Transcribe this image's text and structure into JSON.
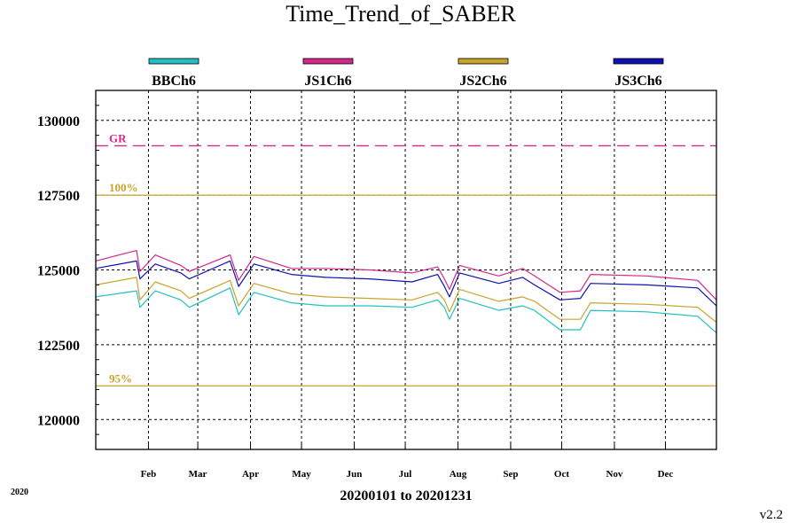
{
  "chart_data": {
    "type": "line",
    "title": "Time_Trend_of_SABER",
    "xlabel": "20200101 to 20201231",
    "ylabel": "",
    "year_label": "2020",
    "version": "v2.2",
    "ylim": [
      119000,
      131000
    ],
    "xlim": [
      "2020-01-01",
      "2020-12-31"
    ],
    "yticks": [
      120000,
      122500,
      125000,
      127500,
      130000
    ],
    "xticks": [
      {
        "label": "Feb",
        "date": "2020-02-01"
      },
      {
        "label": "Mar",
        "date": "2020-03-01"
      },
      {
        "label": "Apr",
        "date": "2020-04-01"
      },
      {
        "label": "May",
        "date": "2020-05-01"
      },
      {
        "label": "Jun",
        "date": "2020-06-01"
      },
      {
        "label": "Jul",
        "date": "2020-07-01"
      },
      {
        "label": "Aug",
        "date": "2020-08-01"
      },
      {
        "label": "Sep",
        "date": "2020-09-01"
      },
      {
        "label": "Oct",
        "date": "2020-10-01"
      },
      {
        "label": "Nov",
        "date": "2020-11-01"
      },
      {
        "label": "Dec",
        "date": "2020-12-01"
      }
    ],
    "grid": true,
    "legend": "top",
    "reference_lines": [
      {
        "label": "GR",
        "value": 129150,
        "color": "#d4288a",
        "style": "dashed"
      },
      {
        "label": "100%",
        "value": 127500,
        "color": "#c8a42a",
        "style": "solid"
      },
      {
        "label": "95%",
        "value": 121125,
        "color": "#c8a42a",
        "style": "solid"
      }
    ],
    "x": [
      "2020-01-01",
      "2020-01-25",
      "2020-01-27",
      "2020-02-05",
      "2020-02-20",
      "2020-02-25",
      "2020-03-20",
      "2020-03-25",
      "2020-04-03",
      "2020-04-25",
      "2020-05-15",
      "2020-06-10",
      "2020-07-05",
      "2020-07-20",
      "2020-07-24",
      "2020-07-27",
      "2020-08-02",
      "2020-08-25",
      "2020-09-08",
      "2020-09-15",
      "2020-09-30",
      "2020-10-12",
      "2020-10-18",
      "2020-11-20",
      "2020-12-20",
      "2020-12-31"
    ],
    "series": [
      {
        "name": "BBCh6",
        "color": "#22c0c0",
        "values": [
          124100,
          124300,
          123750,
          124300,
          124000,
          123750,
          124400,
          123500,
          124250,
          123900,
          123800,
          123800,
          123750,
          124000,
          123750,
          123350,
          124050,
          123650,
          123800,
          123650,
          123000,
          123000,
          123650,
          123600,
          123450,
          122900
        ]
      },
      {
        "name": "JS1Ch6",
        "color": "#d4288a",
        "values": [
          125300,
          125650,
          124950,
          125500,
          125150,
          124950,
          125500,
          124650,
          125450,
          125050,
          125050,
          125000,
          124900,
          125100,
          124700,
          124350,
          125150,
          124800,
          125050,
          124800,
          124250,
          124300,
          124850,
          124800,
          124650,
          124000
        ]
      },
      {
        "name": "JS2Ch6",
        "color": "#c8a42a",
        "values": [
          124500,
          124750,
          124000,
          124600,
          124300,
          124050,
          124650,
          123800,
          124550,
          124200,
          124100,
          124050,
          124000,
          124250,
          124000,
          123600,
          124350,
          123950,
          124100,
          123950,
          123350,
          123350,
          123900,
          123850,
          123750,
          123250
        ]
      },
      {
        "name": "JS3Ch6",
        "color": "#1010b0",
        "values": [
          125050,
          125300,
          124700,
          125200,
          124900,
          124700,
          125300,
          124450,
          125200,
          124850,
          124750,
          124700,
          124600,
          124850,
          124450,
          124100,
          124900,
          124550,
          124750,
          124500,
          124000,
          124050,
          124550,
          124500,
          124400,
          123800
        ]
      }
    ]
  }
}
